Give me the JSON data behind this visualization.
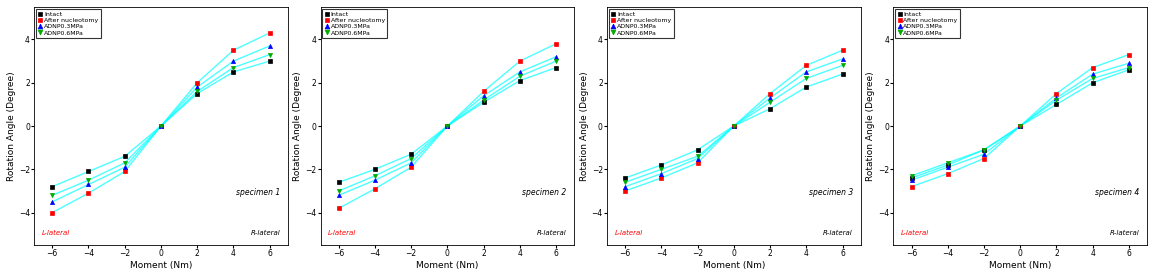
{
  "specimens": [
    "specimen 1",
    "specimen 2",
    "specimen 3",
    "specimen 4"
  ],
  "moments": [
    -6,
    -4,
    -2,
    0,
    2,
    4,
    6
  ],
  "series": {
    "Intact": {
      "color": "black",
      "marker": "s",
      "markersize": 3,
      "data": [
        [
          -2.8,
          -2.1,
          -1.4,
          0.0,
          1.5,
          2.5,
          3.0
        ],
        [
          -2.6,
          -2.0,
          -1.3,
          0.0,
          1.1,
          2.1,
          2.7
        ],
        [
          -2.4,
          -1.8,
          -1.1,
          0.0,
          0.8,
          1.8,
          2.4
        ],
        [
          -2.4,
          -1.8,
          -1.1,
          0.0,
          1.0,
          2.0,
          2.6
        ]
      ]
    },
    "After nucleotomy": {
      "color": "red",
      "marker": "s",
      "markersize": 3,
      "data": [
        [
          -4.0,
          -3.1,
          -2.1,
          0.0,
          2.0,
          3.5,
          4.3
        ],
        [
          -3.8,
          -2.9,
          -1.9,
          0.0,
          1.6,
          3.0,
          3.8
        ],
        [
          -3.0,
          -2.4,
          -1.7,
          0.0,
          1.5,
          2.8,
          3.5
        ],
        [
          -2.8,
          -2.2,
          -1.5,
          0.0,
          1.5,
          2.7,
          3.3
        ]
      ]
    },
    "ADNP0.3MPa": {
      "color": "blue",
      "marker": "^",
      "markersize": 3,
      "data": [
        [
          -3.5,
          -2.7,
          -1.9,
          0.0,
          1.8,
          3.0,
          3.7
        ],
        [
          -3.2,
          -2.5,
          -1.7,
          0.0,
          1.4,
          2.5,
          3.2
        ],
        [
          -2.8,
          -2.2,
          -1.5,
          0.0,
          1.3,
          2.5,
          3.1
        ],
        [
          -2.5,
          -1.9,
          -1.3,
          0.0,
          1.3,
          2.4,
          2.9
        ]
      ]
    },
    "ADNP0.6MPa": {
      "color": "#00aa00",
      "marker": "v",
      "markersize": 3,
      "data": [
        [
          -3.2,
          -2.5,
          -1.7,
          0.0,
          1.6,
          2.7,
          3.3
        ],
        [
          -3.0,
          -2.3,
          -1.5,
          0.0,
          1.2,
          2.3,
          3.0
        ],
        [
          -2.6,
          -2.0,
          -1.4,
          0.0,
          1.1,
          2.2,
          2.8
        ],
        [
          -2.3,
          -1.7,
          -1.1,
          0.0,
          1.2,
          2.2,
          2.7
        ]
      ]
    }
  },
  "xlabel": "Moment (Nm)",
  "ylabel": "Rotation Angle (Degree)",
  "xlim": [
    -7,
    7
  ],
  "ylim": [
    -5.5,
    5.5
  ],
  "xticks": [
    -6,
    -4,
    -2,
    0,
    2,
    4,
    6
  ],
  "yticks": [
    -4,
    -2,
    0,
    2,
    4
  ],
  "legend_labels": [
    "Intact",
    "After nucleotomy",
    "ADNP0.3MPa",
    "ADNP0.6MPa"
  ],
  "legend_colors": [
    "black",
    "red",
    "blue",
    "#00aa00"
  ],
  "legend_markers": [
    "s",
    "s",
    "^",
    "v"
  ],
  "bg_color": "#ffffff",
  "l_lateral_label": "L-lateral",
  "r_lateral_label": "R-lateral",
  "line_color": "cyan",
  "line_alpha": 0.7
}
